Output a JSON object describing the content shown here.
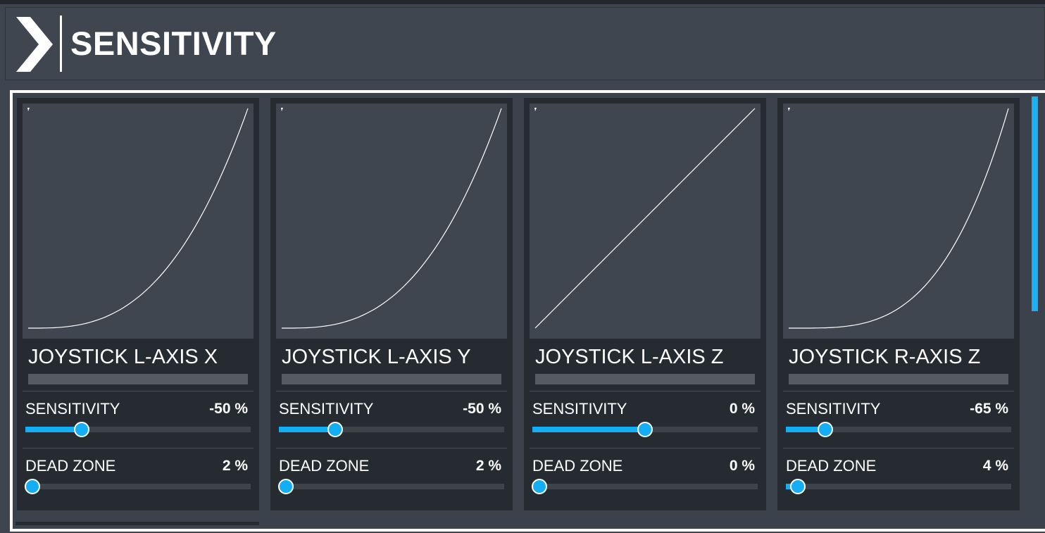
{
  "page": {
    "title": "SENSITIVITY",
    "accent_color": "#13aef4"
  },
  "header_icon": "chevron-right-icon",
  "cards": [
    {
      "title": "JOYSTICK L-AXIS X",
      "curve_type": "exponential",
      "sensitivity": {
        "label": "SENSITIVITY",
        "value_text": "-50 %",
        "value": -50,
        "min": -100,
        "max": 100
      },
      "dead_zone": {
        "label": "DEAD ZONE",
        "value_text": "2 %",
        "value": 2,
        "min": 0,
        "max": 100
      }
    },
    {
      "title": "JOYSTICK L-AXIS Y",
      "curve_type": "exponential",
      "sensitivity": {
        "label": "SENSITIVITY",
        "value_text": "-50 %",
        "value": -50,
        "min": -100,
        "max": 100
      },
      "dead_zone": {
        "label": "DEAD ZONE",
        "value_text": "2 %",
        "value": 2,
        "min": 0,
        "max": 100
      }
    },
    {
      "title": "JOYSTICK L-AXIS Z",
      "curve_type": "linear",
      "sensitivity": {
        "label": "SENSITIVITY",
        "value_text": "0 %",
        "value": 0,
        "min": -100,
        "max": 100
      },
      "dead_zone": {
        "label": "DEAD ZONE",
        "value_text": "0 %",
        "value": 0,
        "min": 0,
        "max": 100
      }
    },
    {
      "title": "JOYSTICK R-AXIS Z",
      "curve_type": "exponential",
      "sensitivity": {
        "label": "SENSITIVITY",
        "value_text": "-65 %",
        "value": -65,
        "min": -100,
        "max": 100
      },
      "dead_zone": {
        "label": "DEAD ZONE",
        "value_text": "4 %",
        "value": 4,
        "min": 0,
        "max": 100
      }
    }
  ]
}
